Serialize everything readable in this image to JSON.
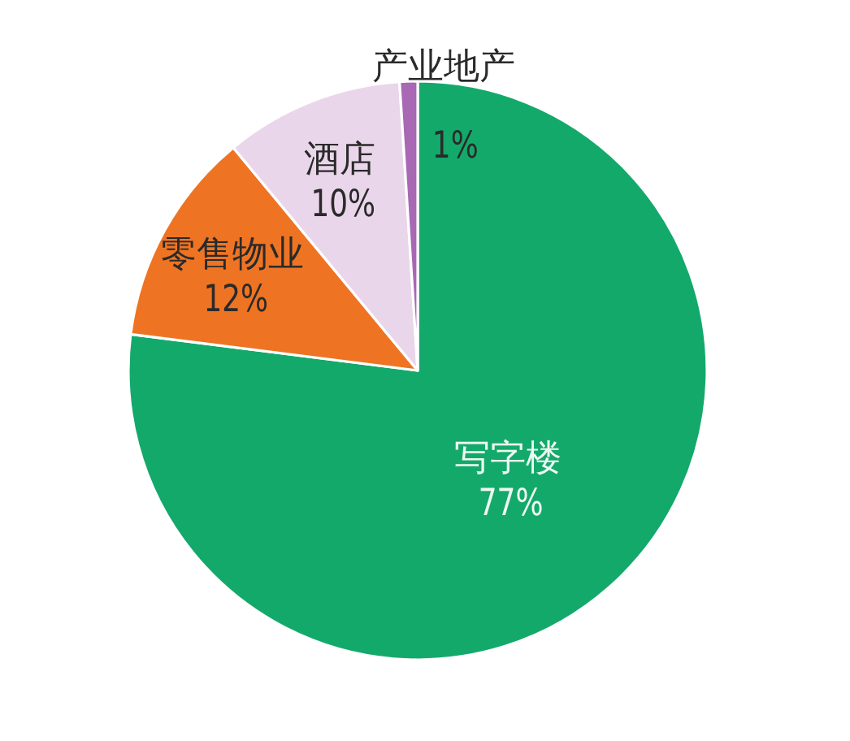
{
  "chart_data": {
    "type": "pie",
    "categories": [
      "写字楼",
      "零售物业",
      "酒店",
      "产业地产"
    ],
    "values": [
      77,
      12,
      10,
      1
    ],
    "colors": [
      "#13a96b",
      "#ee7423",
      "#ead6ea",
      "#a868b4"
    ],
    "value_labels": [
      "77%",
      "12%",
      "10%",
      "1%"
    ]
  }
}
